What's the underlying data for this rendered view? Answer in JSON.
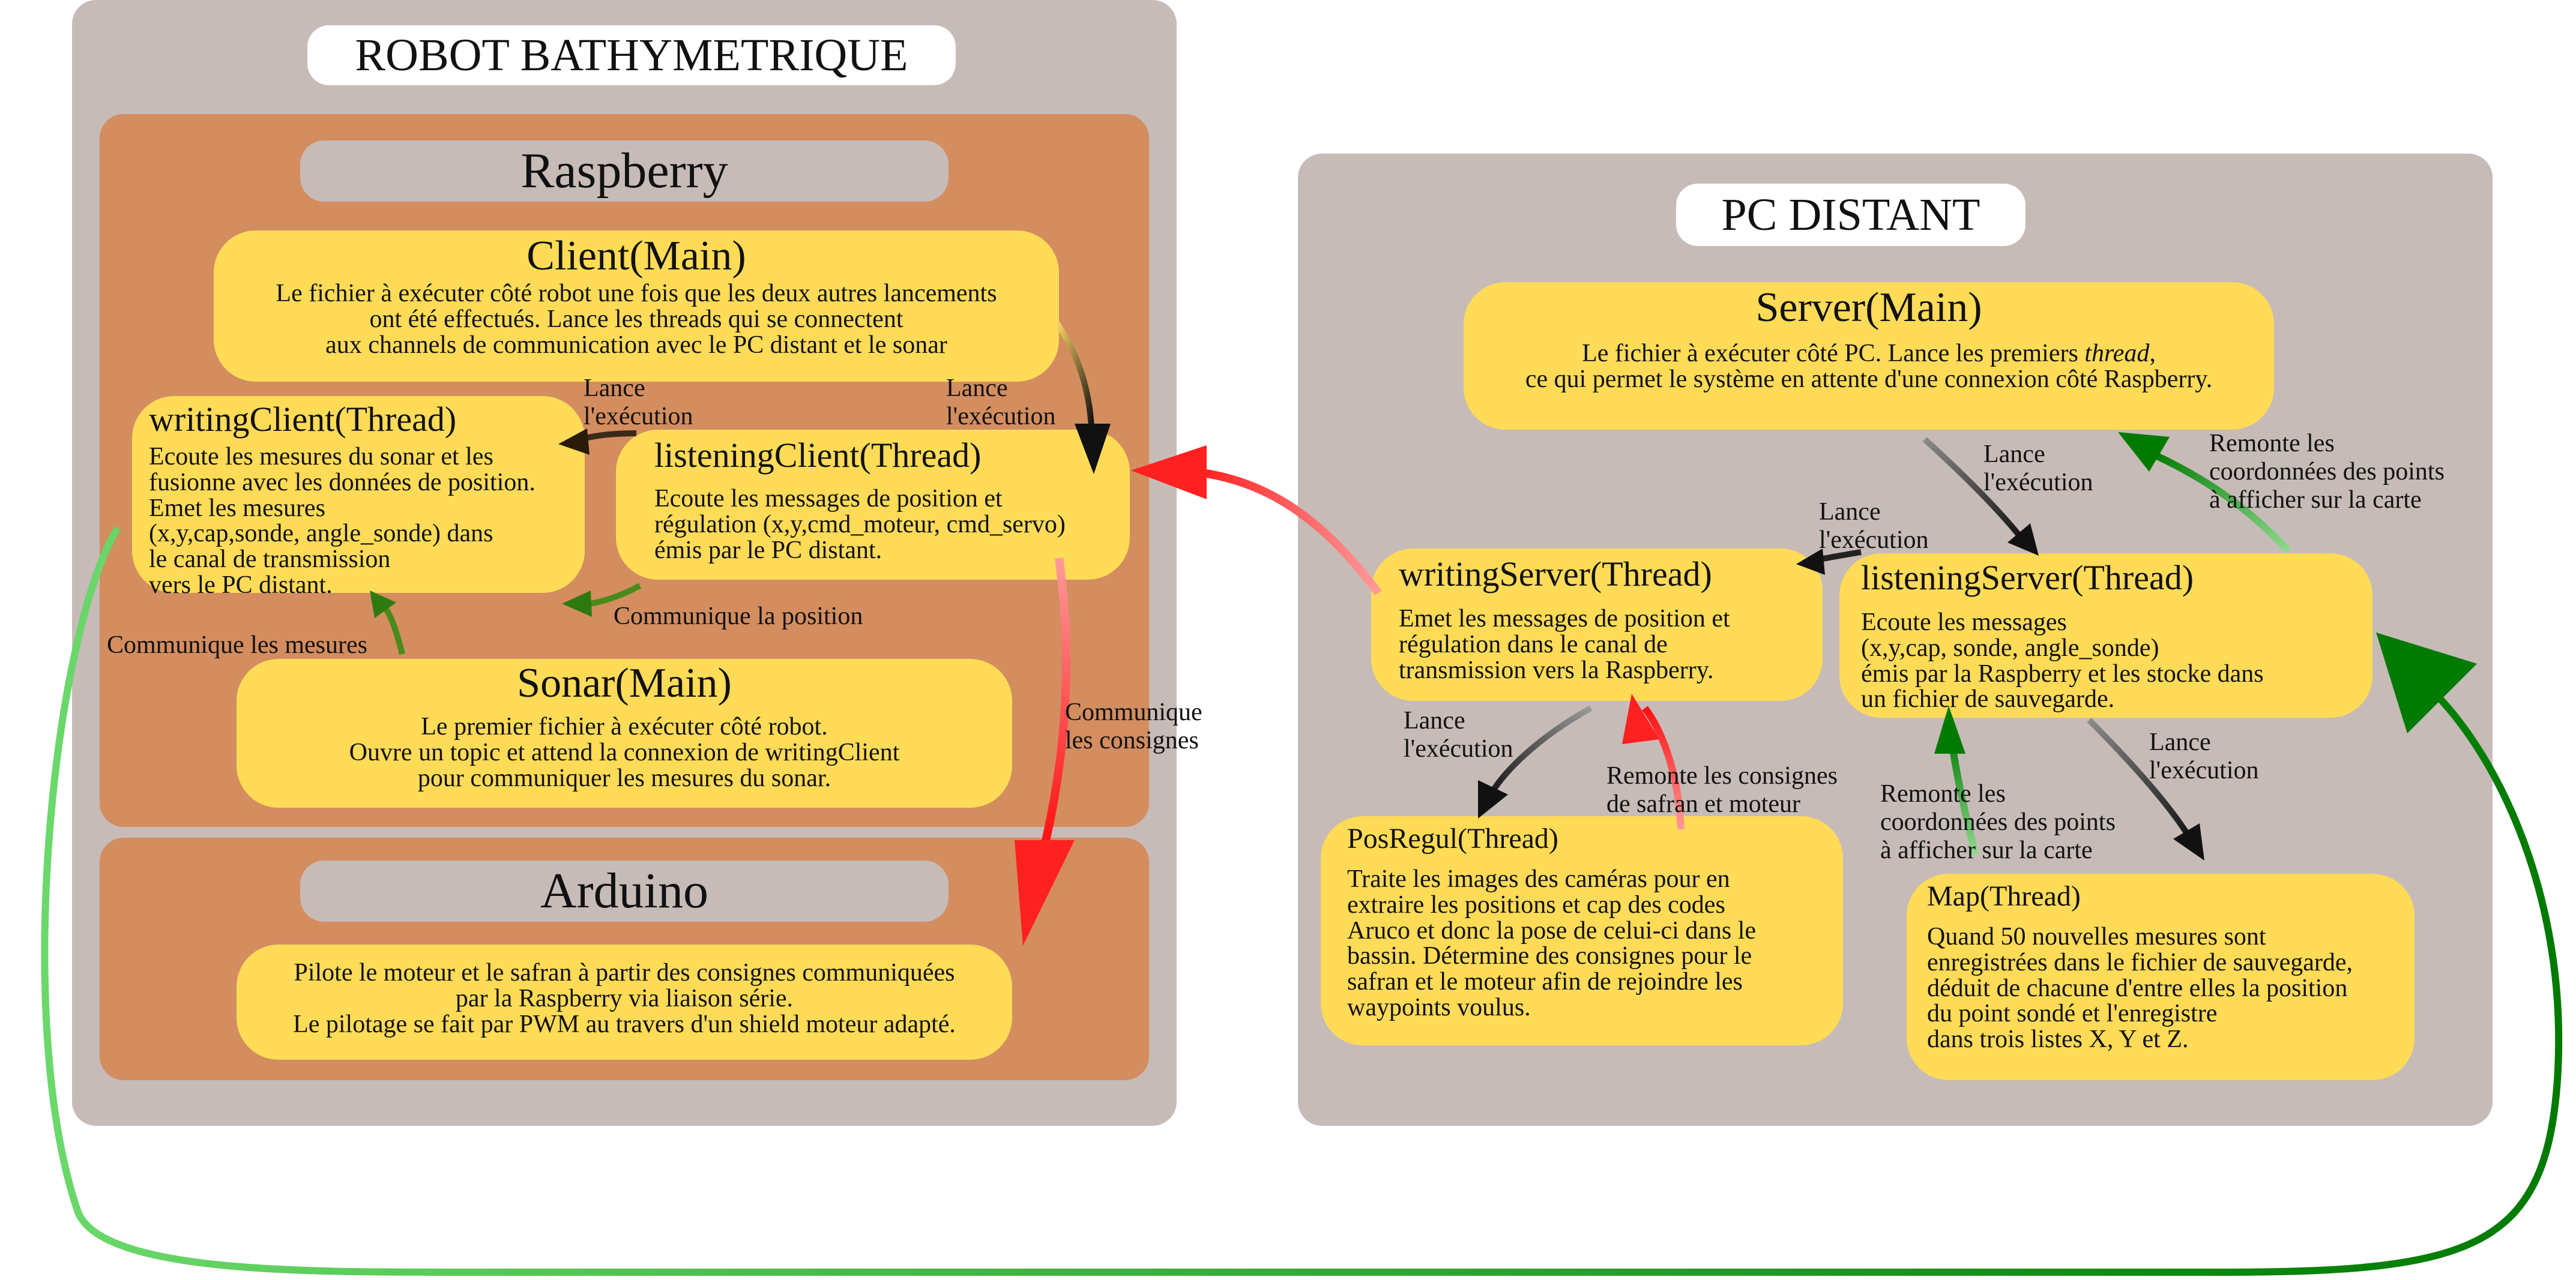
{
  "robot": {
    "title": "ROBOT BATHYMETRIQUE",
    "raspberry": {
      "title": "Raspberry",
      "client_main": {
        "title": "Client(Main)",
        "desc": "Le fichier à exécuter côté robot une fois que les deux autres lancements\nont été effectués. Lance les threads qui se connectent\naux channels de communication avec le PC distant et le sonar"
      },
      "writing_client": {
        "title": "writingClient(Thread)",
        "desc": "Ecoute les mesures du sonar et les\nfusionne avec les données de position.\nEmet les mesures\n(x,y,cap,sonde, angle_sonde) dans\nle canal de transmission\nvers le PC distant."
      },
      "listening_client": {
        "title": "listeningClient(Thread)",
        "desc": "Ecoute les messages de position et\nrégulation (x,y,cmd_moteur, cmd_servo)\némis par le PC distant."
      },
      "sonar_main": {
        "title": "Sonar(Main)",
        "desc": "Le premier fichier à exécuter côté robot.\nOuvre un topic et attend la connexion de writingClient\npour communiquer les mesures du sonar."
      }
    },
    "arduino": {
      "title": "Arduino",
      "desc": "Pilote le moteur et le safran à partir des consignes communiquées\npar la Raspberry via liaison série.\nLe pilotage se fait par PWM au travers d'un shield moteur adapté."
    }
  },
  "pc": {
    "title": "PC DISTANT",
    "server_main": {
      "title": "Server(Main)",
      "desc_before": "Le fichier à exécuter côté PC. Lance les premiers ",
      "desc_italic": "thread",
      "desc_after": ",\nce qui permet le système en attente d'une connexion côté Raspberry."
    },
    "writing_server": {
      "title": "writingServer(Thread)",
      "desc": "Emet les messages de position et\nrégulation dans le canal de\ntransmission vers la Raspberry."
    },
    "listening_server": {
      "title": "listeningServer(Thread)",
      "desc": "Ecoute les messages\n(x,y,cap, sonde, angle_sonde)\némis par la Raspberry et les stocke dans\nun fichier de sauvegarde."
    },
    "pos_regul": {
      "title": "PosRegul(Thread)",
      "desc": "Traite les images des caméras pour en\nextraire les positions et cap des codes\nAruco et donc la pose de celui-ci dans le\nbassin. Détermine des consignes pour le\nsafran et le moteur afin de rejoindre les\nwaypoints voulus."
    },
    "map": {
      "title": "Map(Thread)",
      "desc": "Quand 50 nouvelles mesures sont\nenregistrées dans le fichier de sauvegarde,\ndéduit de chacune d'entre elles la position\ndu point sondé et l'enregistre\ndans trois listes X, Y et Z."
    }
  },
  "labels": {
    "lance_client_writing": "Lance\nl'exécution",
    "lance_client_listening": "Lance\nl'exécution",
    "communique_position": "Communique la position",
    "communique_mesures": "Communique les mesures",
    "communique_consignes": "Communique\nles consignes",
    "lance_server_listening": "Lance\nl'exécution",
    "remonte_coords_server": "Remonte les\ncoordonnées des points\nà afficher sur la carte",
    "lance_server_writing": "Lance\nl'exécution",
    "lance_server_posregul": "Lance\nl'exécution",
    "remonte_consignes": "Remonte les consignes\nde safran et moteur",
    "remonte_coords_map": "Remonte les\ncoordonnées des points\nà afficher sur la carte",
    "lance_server_map": "Lance\nl'exécution"
  },
  "colors": {
    "panel_grey": "#c6bbb7",
    "raspberry_orange": "#d38d5f",
    "box_yellow": "#ffdb57",
    "arrow_dark": "#1a1a1a",
    "arrow_green": "#008000",
    "arrow_light_green": "#6ad86a",
    "arrow_red": "#ff2020",
    "arrow_pink": "#ff9090"
  }
}
